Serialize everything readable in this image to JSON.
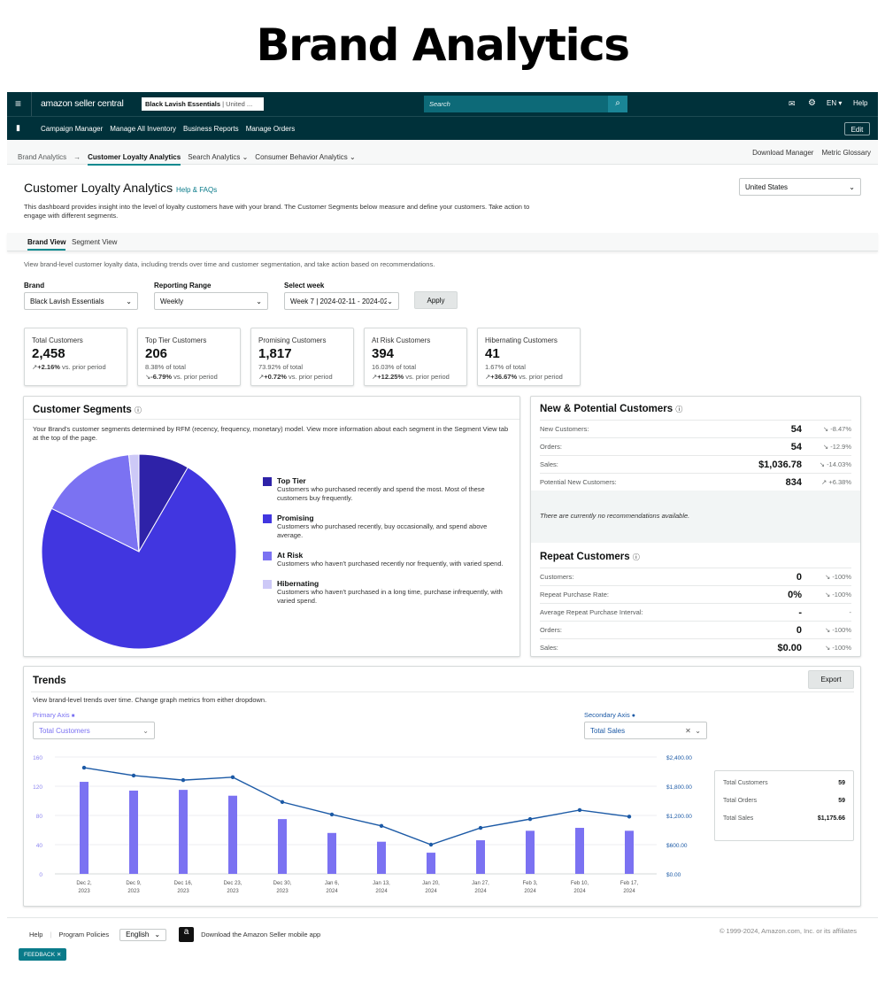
{
  "hero_title": "Brand Analytics",
  "topbar": {
    "logo": "amazon seller central",
    "account": "Black Lavish Essentials",
    "account_region": "| United ...",
    "search_placeholder": "Search",
    "lang": "EN",
    "help": "Help"
  },
  "navbar": {
    "items": [
      "Campaign Manager",
      "Manage All Inventory",
      "Business Reports",
      "Manage Orders"
    ],
    "edit": "Edit"
  },
  "breadcrumb": {
    "root": "Brand Analytics",
    "current": "Customer Loyalty Analytics",
    "items": [
      "Search Analytics",
      "Consumer Behavior Analytics"
    ],
    "right": [
      "Download Manager",
      "Metric Glossary"
    ]
  },
  "page": {
    "title": "Customer Loyalty Analytics",
    "help": "Help & FAQs",
    "description": "This dashboard provides insight into the level of loyalty customers have with your brand. The Customer Segments below measure and define your customers. Take action to engage with different segments.",
    "country": "United States"
  },
  "tabs": [
    "Brand View",
    "Segment View"
  ],
  "tab_description": "View brand-level customer loyalty data, including trends over time and customer segmentation, and take action based on recommendations.",
  "filters": {
    "brand_label": "Brand",
    "brand": "Black Lavish Essentials",
    "range_label": "Reporting Range",
    "range": "Weekly",
    "week_label": "Select week",
    "week": "Week 7 | 2024-02-11 - 2024-02-",
    "apply": "Apply"
  },
  "kpis": [
    {
      "title": "Total Customers",
      "value": "2,458",
      "share": "",
      "change": "+2.16%",
      "suffix": "vs. prior period",
      "trend": "up"
    },
    {
      "title": "Top Tier Customers",
      "value": "206",
      "share": "8.38% of total",
      "change": "-6.79%",
      "suffix": "vs. prior period",
      "trend": "down"
    },
    {
      "title": "Promising Customers",
      "value": "1,817",
      "share": "73.92% of total",
      "change": "+0.72%",
      "suffix": "vs. prior period",
      "trend": "up"
    },
    {
      "title": "At Risk Customers",
      "value": "394",
      "share": "16.03% of total",
      "change": "+12.25%",
      "suffix": "vs. prior period",
      "trend": "up"
    },
    {
      "title": "Hibernating Customers",
      "value": "41",
      "share": "1.67% of total",
      "change": "+36.67%",
      "suffix": "vs. prior period",
      "trend": "up"
    }
  ],
  "segments": {
    "title": "Customer Segments",
    "description": "Your Brand's customer segments determined by RFM (recency, frequency, monetary) model. View more information about each segment in the Segment View tab at the top of the page.",
    "items": [
      {
        "name": "Top Tier",
        "desc": "Customers who purchased recently and spend the most. Most of these customers buy frequently.",
        "percent": 8.38,
        "color": "#2e22a8"
      },
      {
        "name": "Promising",
        "desc": "Customers who purchased recently, buy occasionally, and spend above average.",
        "percent": 73.92,
        "color": "#4136e0"
      },
      {
        "name": "At Risk",
        "desc": "Customers who haven't purchased recently nor frequently, with varied spend.",
        "percent": 16.03,
        "color": "#7b72f2"
      },
      {
        "name": "Hibernating",
        "desc": "Customers who haven't purchased in a long time, purchase infrequently, with varied spend.",
        "percent": 1.67,
        "color": "#cdc9f7"
      }
    ]
  },
  "new_potential": {
    "title": "New & Potential Customers",
    "rows": [
      {
        "label": "New Customers:",
        "value": "54",
        "change": "-8.47%"
      },
      {
        "label": "Orders:",
        "value": "54",
        "change": "-12.9%"
      },
      {
        "label": "Sales:",
        "value": "$1,036.78",
        "change": "-14.03%"
      },
      {
        "label": "Potential New Customers:",
        "value": "834",
        "change": "+6.38%"
      }
    ],
    "recommendation": "There are currently no recommendations available."
  },
  "repeat": {
    "title": "Repeat Customers",
    "rows": [
      {
        "label": "Customers:",
        "value": "0",
        "change": "-100%"
      },
      {
        "label": "Repeat Purchase Rate:",
        "value": "0%",
        "change": "-100%"
      },
      {
        "label": "Average Repeat Purchase Interval:",
        "value": "-",
        "change": "-"
      },
      {
        "label": "Orders:",
        "value": "0",
        "change": "-100%"
      },
      {
        "label": "Sales:",
        "value": "$0.00",
        "change": "-100%"
      }
    ]
  },
  "trends": {
    "title": "Trends",
    "export": "Export",
    "description": "View brand-level trends over time. Change graph metrics from either dropdown.",
    "primary_label": "Primary Axis",
    "primary": "Total Customers",
    "secondary_label": "Secondary Axis",
    "secondary": "Total Sales",
    "summary": [
      {
        "label": "Total Customers",
        "value": "59"
      },
      {
        "label": "Total Orders",
        "value": "59"
      },
      {
        "label": "Total Sales",
        "value": "$1,175.66"
      }
    ]
  },
  "chart_data": {
    "type": "bar+line",
    "categories": [
      [
        "Dec 2,",
        "2023"
      ],
      [
        "Dec 9,",
        "2023"
      ],
      [
        "Dec 16,",
        "2023"
      ],
      [
        "Dec 23,",
        "2023"
      ],
      [
        "Dec 30,",
        "2023"
      ],
      [
        "Jan 6,",
        "2024"
      ],
      [
        "Jan 13,",
        "2024"
      ],
      [
        "Jan 20,",
        "2024"
      ],
      [
        "Jan 27,",
        "2024"
      ],
      [
        "Feb 3,",
        "2024"
      ],
      [
        "Feb 10,",
        "2024"
      ],
      [
        "Feb 17,",
        "2024"
      ]
    ],
    "series": [
      {
        "name": "Total Customers",
        "axis": "left",
        "type": "bar",
        "color": "#7b72f2",
        "values": [
          126,
          114,
          115,
          107,
          75,
          56,
          44,
          29,
          46,
          59,
          63,
          59
        ]
      },
      {
        "name": "Total Sales",
        "axis": "right",
        "type": "line",
        "color": "#1c5aa6",
        "values": [
          2180,
          2020,
          1925,
          1985,
          1475,
          1220,
          985,
          600,
          945,
          1125,
          1310,
          1176
        ]
      }
    ],
    "ylim": [
      0,
      160
    ],
    "yticks": [
      "0",
      "40",
      "80",
      "120",
      "160"
    ],
    "y2lim": [
      0,
      2400
    ],
    "y2ticks": [
      "$0.00",
      "$600.00",
      "$1,200.00",
      "$1,800.00",
      "$2,400.00"
    ],
    "grid": true
  },
  "footer": {
    "links": [
      "Help",
      "Program Policies"
    ],
    "language": "English",
    "app": "Download the Amazon Seller mobile app",
    "copyright": "© 1999-2024, Amazon.com, Inc. or its affiliates",
    "feedback": "FEEDBACK"
  }
}
